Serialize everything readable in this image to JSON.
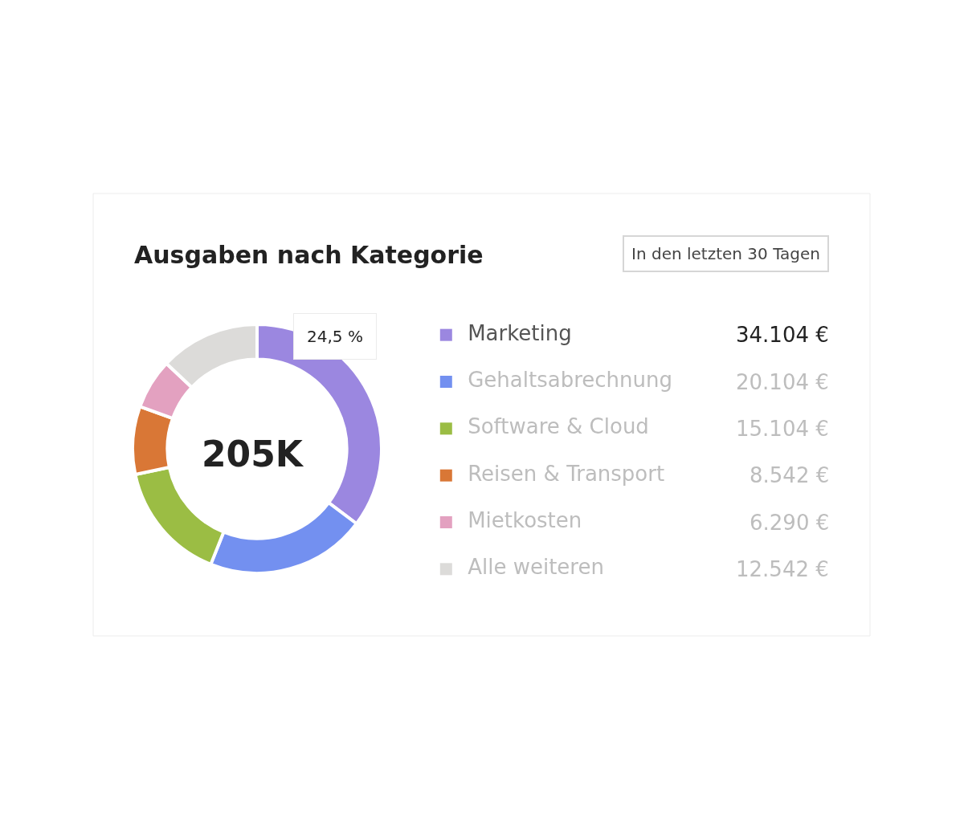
{
  "chart_data": {
    "type": "donut",
    "title": "Ausgaben nach Kategorie",
    "categories": [
      "Marketing",
      "Gehaltsabrechnung",
      "Software & Cloud",
      "Reisen & Transport",
      "Mietkosten",
      "Alle weiteren"
    ],
    "values": [
      34104,
      20104,
      15104,
      8542,
      6290,
      12542
    ],
    "value_labels": [
      "34.104 €",
      "20.104 €",
      "15.104 €",
      "8.542 €",
      "6.290 €",
      "12.542 €"
    ],
    "colors": [
      "#9b87e0",
      "#7390f0",
      "#9bbd44",
      "#d97736",
      "#e3a1c0",
      "#dcdbd9"
    ],
    "legend": "right",
    "annotations": [
      "In den letzten 30 Tagen",
      "205K",
      "24,5 %"
    ]
  }
}
